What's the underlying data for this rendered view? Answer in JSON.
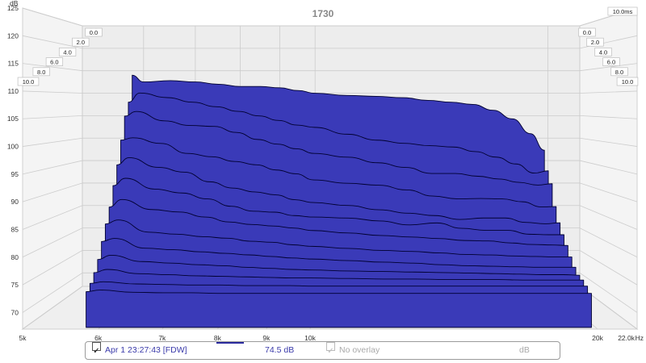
{
  "chart_data": {
    "type": "area",
    "title": "1730",
    "y_unit": "dB",
    "x_unit": "Hz",
    "y_ticks": [
      "125",
      "120",
      "115",
      "110",
      "105",
      "100",
      "95",
      "90",
      "85",
      "80",
      "75",
      "70"
    ],
    "ylim": [
      67,
      125
    ],
    "x_ticks": [
      "5k",
      "6k",
      "7k",
      "8k",
      "9k",
      "10k",
      "20k",
      "22.0k"
    ],
    "x_tick_values": [
      5000,
      6000,
      7000,
      8000,
      9000,
      10000,
      20000,
      22000
    ],
    "xlim": [
      5000,
      22000
    ],
    "x_scale": "log",
    "time_ticks_left": [
      "0.0",
      "2.0",
      "4.0",
      "6.0",
      "8.0",
      "10.0"
    ],
    "time_ticks_right": [
      "0.0",
      "2.0",
      "4.0",
      "6.0",
      "8.0",
      "10.0"
    ],
    "time_axis_label": "10.0ms",
    "time_range_ms": [
      0,
      10
    ],
    "fill_color": "#3a3ab8",
    "edge_color": "#000030",
    "grid": true,
    "series": [
      {
        "time_ms": 0.0,
        "x": [
          5800,
          6000,
          6500,
          7000,
          7500,
          8000,
          8500,
          9000,
          9500,
          10000,
          11000,
          12000,
          13000,
          14000,
          15000,
          16000,
          17000,
          18000,
          19000,
          19800
        ],
        "values": [
          114,
          112.5,
          112.8,
          112.5,
          112,
          111.5,
          111.5,
          111.2,
          110.6,
          110,
          109.5,
          109.3,
          109,
          108.4,
          108,
          107.5,
          106.2,
          104.3,
          101,
          97.3
        ]
      },
      {
        "time_ms": 0.8,
        "x": [
          5800,
          6000,
          6500,
          7000,
          7500,
          8000,
          8500,
          9000,
          9500,
          10000,
          11000,
          12000,
          13000,
          14000,
          15000,
          16000,
          17000,
          18000,
          19000,
          19800
        ],
        "values": [
          108,
          110,
          109,
          108,
          107,
          106,
          105,
          104,
          103,
          102.5,
          101,
          99.7,
          99,
          98.5,
          98.2,
          97.2,
          96,
          94.5,
          92.5,
          93
        ]
      },
      {
        "time_ms": 1.6,
        "x": [
          5800,
          6000,
          6500,
          7000,
          7500,
          8000,
          8500,
          9000,
          9500,
          10000,
          11000,
          12000,
          13000,
          14000,
          15000,
          16000,
          17000,
          18000,
          19000,
          19800
        ],
        "values": [
          105,
          106,
          104,
          103,
          102.8,
          101.5,
          100,
          99,
          98,
          97,
          96.2,
          95,
          94,
          92.7,
          92.7,
          92.1,
          91.5,
          90.8,
          90.2,
          90.5
        ]
      },
      {
        "time_ms": 2.4,
        "x": [
          5800,
          6000,
          6500,
          7000,
          7500,
          8000,
          8500,
          9000,
          9500,
          10000,
          11000,
          12000,
          13000,
          14000,
          15000,
          16000,
          17000,
          18000,
          19000,
          19800
        ],
        "values": [
          100,
          100.5,
          99.3,
          97.2,
          96.5,
          95.5,
          94.8,
          93.7,
          92.9,
          91.6,
          90.9,
          90.5,
          89.5,
          88.2,
          87.6,
          87.7,
          87.6,
          87,
          85.9,
          86
        ]
      },
      {
        "time_ms": 3.2,
        "x": [
          5800,
          6000,
          6500,
          7000,
          7500,
          8000,
          8500,
          9000,
          9500,
          10000,
          11000,
          12000,
          13000,
          14000,
          15000,
          16000,
          17000,
          18000,
          19000,
          19800
        ],
        "values": [
          95,
          96.5,
          94.5,
          93.5,
          91.5,
          90.2,
          89.4,
          88.8,
          87.8,
          87.2,
          86.6,
          85.7,
          85,
          84.5,
          83.7,
          84,
          84,
          83.1,
          82.8,
          83
        ]
      },
      {
        "time_ms": 4.0,
        "x": [
          5800,
          6000,
          6500,
          7000,
          7500,
          8000,
          8500,
          9000,
          9500,
          10000,
          11000,
          12000,
          13000,
          14000,
          15000,
          16000,
          17000,
          18000,
          19000,
          19800
        ],
        "values": [
          91,
          92.5,
          90.3,
          89.5,
          88.3,
          86.8,
          85.8,
          85.6,
          84.9,
          84.6,
          84.4,
          83.8,
          83,
          83.4,
          82.3,
          81.9,
          81.9,
          81.1,
          81,
          81
        ]
      },
      {
        "time_ms": 4.8,
        "x": [
          5800,
          6000,
          6500,
          7000,
          7500,
          8000,
          8500,
          9000,
          9500,
          10000,
          11000,
          12000,
          13000,
          14000,
          15000,
          16000,
          17000,
          18000,
          19000,
          19800
        ],
        "values": [
          87,
          88.5,
          86.5,
          86,
          85,
          84,
          83.5,
          83.2,
          82.8,
          82.3,
          81.8,
          81.3,
          81,
          80.7,
          80.3,
          80.2,
          79.8,
          79.5,
          79.4,
          79.3
        ]
      },
      {
        "time_ms": 5.6,
        "x": [
          5800,
          6000,
          6500,
          7000,
          7500,
          8000,
          8500,
          9000,
          9500,
          10000,
          11000,
          12000,
          13000,
          14000,
          15000,
          16000,
          17000,
          18000,
          19000,
          19800
        ],
        "values": [
          84,
          84.8,
          82.4,
          82,
          81.5,
          81.2,
          80.6,
          80.4,
          79.9,
          79.6,
          79.2,
          78.8,
          78.6,
          78.3,
          78,
          77.9,
          77.7,
          77.6,
          77.5,
          77.5
        ]
      },
      {
        "time_ms": 6.4,
        "x": [
          5800,
          6000,
          6500,
          7000,
          7500,
          8000,
          8500,
          9000,
          9500,
          10000,
          11000,
          12000,
          13000,
          14000,
          15000,
          16000,
          17000,
          18000,
          19000,
          19800
        ],
        "values": [
          81,
          81.6,
          79.7,
          79.4,
          79,
          78.7,
          78.4,
          78.1,
          77.8,
          77.6,
          77.3,
          77,
          76.8,
          76.5,
          76.3,
          76.2,
          76.1,
          76,
          76,
          76
        ]
      },
      {
        "time_ms": 7.2,
        "x": [
          5800,
          6000,
          6500,
          7000,
          7500,
          8000,
          8500,
          9000,
          9500,
          10000,
          11000,
          12000,
          13000,
          14000,
          15000,
          16000,
          17000,
          18000,
          19000,
          19800
        ],
        "values": [
          78,
          78.8,
          77.6,
          77.3,
          77,
          76.8,
          76.5,
          76.3,
          76.1,
          76,
          75.8,
          75.7,
          75.6,
          75.5,
          75.4,
          75.3,
          75.2,
          75.1,
          75.1,
          75
        ]
      },
      {
        "time_ms": 8.0,
        "x": [
          5800,
          6000,
          6500,
          7000,
          7500,
          8000,
          8500,
          9000,
          9500,
          10000,
          11000,
          12000,
          13000,
          14000,
          15000,
          16000,
          17000,
          18000,
          19000,
          19800
        ],
        "values": [
          76,
          76.6,
          75.8,
          75.6,
          75.4,
          75.3,
          75.2,
          75.1,
          75,
          75,
          74.9,
          74.8,
          74.8,
          74.7,
          74.7,
          74.7,
          74.6,
          74.6,
          74.6,
          74.6
        ]
      },
      {
        "time_ms": 8.8,
        "x": [
          5800,
          6000,
          6500,
          7000,
          7500,
          8000,
          8500,
          9000,
          9500,
          10000,
          11000,
          12000,
          13000,
          14000,
          15000,
          16000,
          17000,
          18000,
          19000,
          19800
        ],
        "values": [
          74.5,
          74.8,
          74.4,
          74.3,
          74.2,
          74.2,
          74.1,
          74.1,
          74.1,
          74,
          74,
          74,
          74,
          74,
          74,
          74,
          74,
          74,
          74,
          74
        ]
      },
      {
        "time_ms": 9.6,
        "x": [
          5800,
          6000,
          6500,
          7000,
          7500,
          8000,
          8500,
          9000,
          9500,
          10000,
          11000,
          12000,
          13000,
          14000,
          15000,
          16000,
          17000,
          18000,
          19000,
          19800
        ],
        "values": [
          73.5,
          73.8,
          73.4,
          73.3,
          73.3,
          73.2,
          73.2,
          73.2,
          73.2,
          73.2,
          73.2,
          73.2,
          73.2,
          73.2,
          73.2,
          73.2,
          73.2,
          73.2,
          73.2,
          73.2
        ]
      }
    ],
    "legend": {
      "measurement_label": "Apr 1 23:27:43 [FDW]",
      "measurement_checked": true,
      "level_value": "74.5 dB",
      "overlay_label": "No overlay",
      "overlay_checked": true,
      "overlay_unit": "dB",
      "line_color": "#2b2b9e"
    }
  }
}
